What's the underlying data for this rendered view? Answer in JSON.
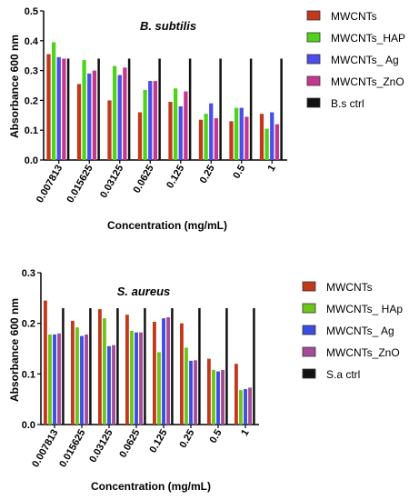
{
  "chart_data": [
    {
      "type": "bar",
      "title": "B. subtilis",
      "xlabel": "Concentration (mg/mL)",
      "ylabel": "Absorbance 600 nm",
      "ylim": [
        0,
        0.5
      ],
      "yticks": [
        "0.0",
        "0.1",
        "0.2",
        "0.3",
        "0.4",
        "0.5"
      ],
      "categories": [
        "0.007813",
        "0.015625",
        "0.03125",
        "0.0625",
        "0.125",
        "0.25",
        "0.5",
        "1"
      ],
      "legend_position": "right",
      "series": [
        {
          "name": "MWCNTs",
          "color": "#c0391b",
          "values": [
            0.355,
            0.255,
            0.2,
            0.16,
            0.195,
            0.135,
            0.13,
            0.155
          ]
        },
        {
          "name": "MWCNTs_HAP",
          "color": "#4fd31b",
          "values": [
            0.395,
            0.335,
            0.315,
            0.235,
            0.24,
            0.155,
            0.175,
            0.105
          ]
        },
        {
          "name": "MWCNTs_ Ag",
          "color": "#4b4de8",
          "values": [
            0.345,
            0.29,
            0.285,
            0.265,
            0.18,
            0.19,
            0.175,
            0.16
          ]
        },
        {
          "name": "MWCNTs_ZnO",
          "color": "#c2388f",
          "values": [
            0.34,
            0.3,
            0.31,
            0.265,
            0.23,
            0.14,
            0.145,
            0.12
          ]
        },
        {
          "name": "B.s ctrl",
          "color": "#111111",
          "values": [
            0.34,
            0.34,
            0.34,
            0.34,
            0.34,
            0.34,
            0.34,
            0.34
          ]
        }
      ]
    },
    {
      "type": "bar",
      "title": "S. aureus",
      "xlabel": "Concentration (mg/mL)",
      "ylabel": "Absorbance 600 nm",
      "ylim": [
        0,
        0.3
      ],
      "yticks": [
        "0.0",
        "0.1",
        "0.2",
        "0.3"
      ],
      "categories": [
        "0.007813",
        "0.015625",
        "0.03125",
        "0.0625",
        "0.125",
        "0.25",
        "0.5",
        "1"
      ],
      "legend_position": "right",
      "series": [
        {
          "name": "MWCNTs",
          "color": "#c0391b",
          "values": [
            0.245,
            0.205,
            0.228,
            0.217,
            0.203,
            0.2,
            0.13,
            0.12
          ]
        },
        {
          "name": "MWCNTs_ HAp",
          "color": "#6dc41b",
          "values": [
            0.178,
            0.192,
            0.21,
            0.185,
            0.143,
            0.152,
            0.108,
            0.068
          ]
        },
        {
          "name": "MWCNTs_ Ag",
          "color": "#3b4ce0",
          "values": [
            0.178,
            0.175,
            0.155,
            0.182,
            0.21,
            0.126,
            0.105,
            0.07
          ]
        },
        {
          "name": "MWCNTs_ZnO",
          "color": "#a34c9a",
          "values": [
            0.18,
            0.178,
            0.157,
            0.182,
            0.212,
            0.127,
            0.108,
            0.073
          ]
        },
        {
          "name": "S.a ctrl",
          "color": "#111111",
          "values": [
            0.23,
            0.23,
            0.23,
            0.23,
            0.23,
            0.23,
            0.23,
            0.23
          ]
        }
      ]
    }
  ]
}
